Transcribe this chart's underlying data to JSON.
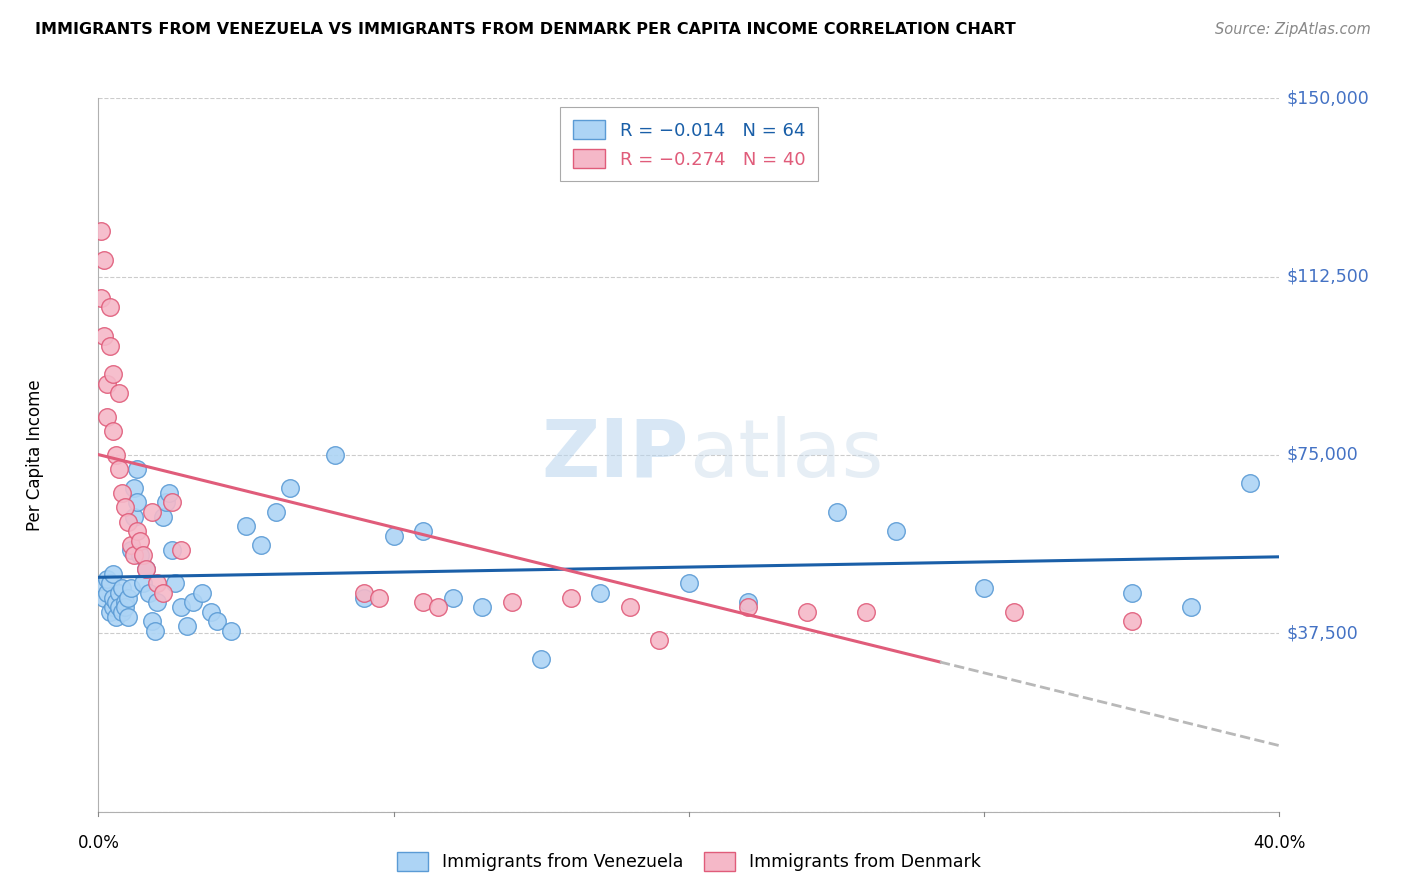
{
  "title": "IMMIGRANTS FROM VENEZUELA VS IMMIGRANTS FROM DENMARK PER CAPITA INCOME CORRELATION CHART",
  "source": "Source: ZipAtlas.com",
  "ylabel": "Per Capita Income",
  "yticks": [
    0,
    37500,
    75000,
    112500,
    150000
  ],
  "ytick_labels": [
    "",
    "$37,500",
    "$75,000",
    "$112,500",
    "$150,000"
  ],
  "xlim": [
    0.0,
    0.4
  ],
  "ylim": [
    0,
    150000
  ],
  "watermark_zip": "ZIP",
  "watermark_atlas": "atlas",
  "venezuela_color": "#add4f5",
  "denmark_color": "#f5b8c8",
  "venezuela_edge": "#5b9bd5",
  "denmark_edge": "#e05c7a",
  "trend_venezuela_color": "#1a5fa8",
  "trend_denmark_color": "#e05c7a",
  "trend_denmark_dash_color": "#b8b8b8",
  "venezuela_points_x": [
    0.001,
    0.002,
    0.003,
    0.003,
    0.004,
    0.004,
    0.005,
    0.005,
    0.005,
    0.006,
    0.006,
    0.007,
    0.007,
    0.008,
    0.008,
    0.009,
    0.009,
    0.01,
    0.01,
    0.011,
    0.011,
    0.012,
    0.012,
    0.013,
    0.013,
    0.014,
    0.015,
    0.016,
    0.017,
    0.018,
    0.019,
    0.02,
    0.022,
    0.023,
    0.024,
    0.025,
    0.026,
    0.028,
    0.03,
    0.032,
    0.035,
    0.038,
    0.04,
    0.045,
    0.05,
    0.055,
    0.06,
    0.065,
    0.08,
    0.09,
    0.1,
    0.11,
    0.12,
    0.13,
    0.15,
    0.17,
    0.2,
    0.22,
    0.25,
    0.27,
    0.3,
    0.35,
    0.37,
    0.39
  ],
  "venezuela_points_y": [
    47000,
    45000,
    46000,
    49000,
    42000,
    48000,
    50000,
    43000,
    45000,
    44000,
    41000,
    46000,
    43000,
    47000,
    42000,
    44000,
    43000,
    45000,
    41000,
    47000,
    55000,
    62000,
    68000,
    72000,
    65000,
    54000,
    48000,
    51000,
    46000,
    40000,
    38000,
    44000,
    62000,
    65000,
    67000,
    55000,
    48000,
    43000,
    39000,
    44000,
    46000,
    42000,
    40000,
    38000,
    60000,
    56000,
    63000,
    68000,
    75000,
    45000,
    58000,
    59000,
    45000,
    43000,
    32000,
    46000,
    48000,
    44000,
    63000,
    59000,
    47000,
    46000,
    43000,
    69000
  ],
  "denmark_points_x": [
    0.001,
    0.001,
    0.002,
    0.002,
    0.003,
    0.003,
    0.004,
    0.004,
    0.005,
    0.005,
    0.006,
    0.007,
    0.007,
    0.008,
    0.009,
    0.01,
    0.011,
    0.012,
    0.013,
    0.014,
    0.015,
    0.016,
    0.018,
    0.02,
    0.022,
    0.025,
    0.028,
    0.09,
    0.095,
    0.11,
    0.115,
    0.14,
    0.16,
    0.18,
    0.19,
    0.22,
    0.24,
    0.26,
    0.31,
    0.35
  ],
  "denmark_points_y": [
    122000,
    108000,
    116000,
    100000,
    90000,
    83000,
    106000,
    98000,
    92000,
    80000,
    75000,
    72000,
    88000,
    67000,
    64000,
    61000,
    56000,
    54000,
    59000,
    57000,
    54000,
    51000,
    63000,
    48000,
    46000,
    65000,
    55000,
    46000,
    45000,
    44000,
    43000,
    44000,
    45000,
    43000,
    36000,
    43000,
    42000,
    42000,
    42000,
    40000
  ]
}
